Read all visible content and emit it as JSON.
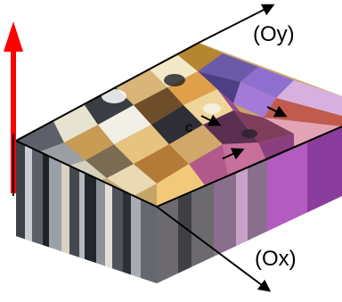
{
  "axes": {
    "y_label": "(Oy)",
    "x_label": "(Ox)"
  },
  "annotation": {
    "grain_marker": "c"
  },
  "colors": {
    "vertical_arrow": "#ff0000",
    "axis_arrows": "#000000",
    "background": "#ffffff"
  }
}
